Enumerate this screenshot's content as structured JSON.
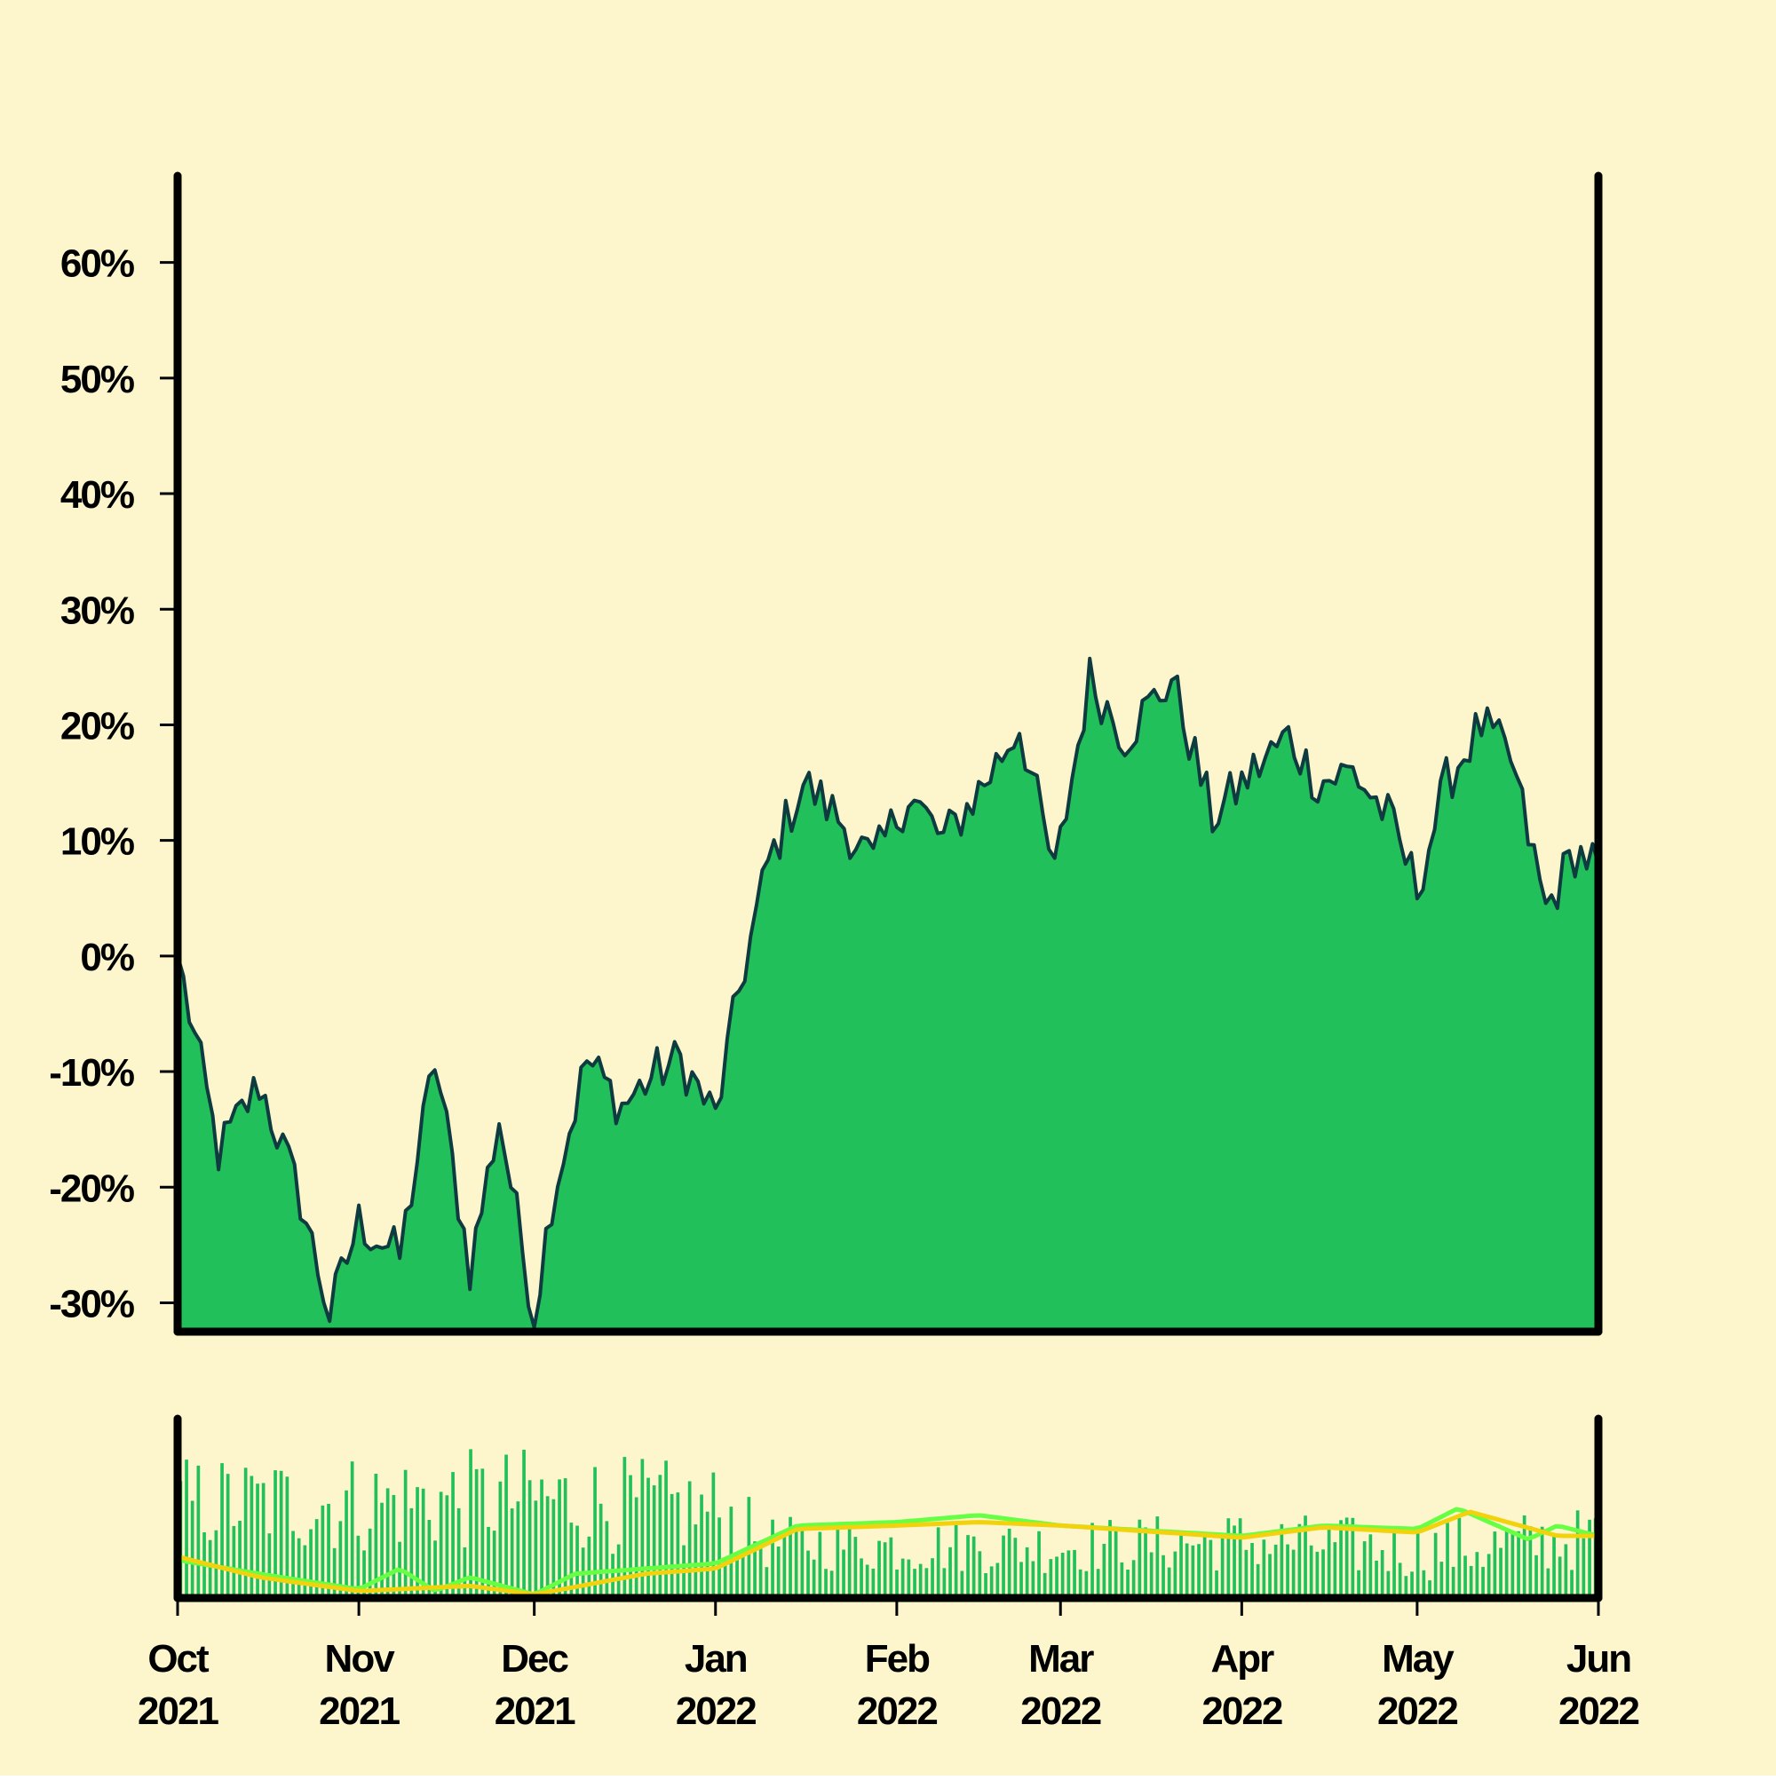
{
  "colors": {
    "background": "#fdf6cc",
    "area_fill": "#22c05a",
    "line": "#0d3b3f",
    "axis": "#000000",
    "volume_bars": "#22c05a",
    "ma_short": "#66ff44",
    "ma_long": "#f2d20c"
  },
  "chart_data": [
    {
      "type": "area",
      "x_dates": [
        "2021-10-01",
        "2021-10-08",
        "2021-10-15",
        "2021-10-22",
        "2021-10-27",
        "2021-11-01",
        "2021-11-08",
        "2021-11-14",
        "2021-11-20",
        "2021-11-25",
        "2021-12-01",
        "2021-12-04",
        "2021-12-10",
        "2021-12-16",
        "2021-12-22",
        "2021-12-26",
        "2022-01-01",
        "2022-01-05",
        "2022-01-10",
        "2022-01-16",
        "2022-01-22",
        "2022-01-28",
        "2022-02-03",
        "2022-02-09",
        "2022-02-16",
        "2022-02-22",
        "2022-02-28",
        "2022-03-06",
        "2022-03-12",
        "2022-03-20",
        "2022-03-27",
        "2022-04-03",
        "2022-04-09",
        "2022-04-14",
        "2022-04-20",
        "2022-04-26",
        "2022-05-01",
        "2022-05-06",
        "2022-05-12",
        "2022-05-17",
        "2022-05-23",
        "2022-05-28",
        "2022-06-01"
      ],
      "y_values": [
        0.0,
        -17.0,
        -11.0,
        -21.0,
        -31.0,
        -23.0,
        -26.0,
        -9.0,
        -27.0,
        -14.0,
        -31.0,
        -21.0,
        -9.0,
        -13.0,
        -10.0,
        -9.0,
        -14.0,
        -3.0,
        8.0,
        15.0,
        12.0,
        8.0,
        14.0,
        10.0,
        15.0,
        20.0,
        7.0,
        24.0,
        19.0,
        24.0,
        12.0,
        16.0,
        19.0,
        15.0,
        16.0,
        12.0,
        6.0,
        15.0,
        20.0,
        17.0,
        4.0,
        9.0,
        8.0
      ],
      "yticks": [
        "60%",
        "50%",
        "40%",
        "30%",
        "20%",
        "10%",
        "0%",
        "-10%",
        "-20%",
        "-30%"
      ],
      "ytick_values": [
        60,
        50,
        40,
        30,
        20,
        10,
        0,
        -10,
        -20,
        -30
      ],
      "ylim": [
        -32.5,
        67.5
      ],
      "xlabel": "",
      "ylabel": "",
      "title": ""
    },
    {
      "type": "bar",
      "note_series": [
        "volume",
        "ma_short",
        "ma_long"
      ],
      "xticks": [
        {
          "month": "Oct",
          "year": "2021"
        },
        {
          "month": "Nov",
          "year": "2021"
        },
        {
          "month": "Dec",
          "year": "2021"
        },
        {
          "month": "Jan",
          "year": "2022"
        },
        {
          "month": "Feb",
          "year": "2022"
        },
        {
          "month": "Mar",
          "year": "2022"
        },
        {
          "month": "Apr",
          "year": "2022"
        },
        {
          "month": "May",
          "year": "2022"
        },
        {
          "month": "Jun",
          "year": "2022"
        }
      ],
      "xtick_dates": [
        "2021-10-01",
        "2021-11-01",
        "2021-12-01",
        "2022-01-01",
        "2022-02-01",
        "2022-03-01",
        "2022-04-01",
        "2022-05-01",
        "2022-06-01"
      ],
      "volume_profile": {
        "dates": [
          "2021-10-01",
          "2021-11-01",
          "2021-12-01",
          "2022-01-01",
          "2022-01-10",
          "2022-02-01",
          "2022-03-01",
          "2022-04-01",
          "2022-05-01",
          "2022-05-15",
          "2022-06-01"
        ],
        "mean": [
          0.55,
          0.55,
          0.58,
          0.5,
          0.32,
          0.3,
          0.3,
          0.33,
          0.28,
          0.3,
          0.35
        ],
        "spread": [
          0.28,
          0.3,
          0.3,
          0.28,
          0.16,
          0.16,
          0.16,
          0.18,
          0.18,
          0.2,
          0.18
        ]
      },
      "ma_long_values": {
        "dates": [
          "2021-10-01",
          "2021-10-15",
          "2021-11-01",
          "2021-11-20",
          "2021-12-01",
          "2021-12-20",
          "2022-01-01",
          "2022-01-15",
          "2022-02-01",
          "2022-02-15",
          "2022-03-01",
          "2022-04-01",
          "2022-04-15",
          "2022-05-01",
          "2022-05-10",
          "2022-05-25",
          "2022-06-01"
        ],
        "values": [
          0.22,
          0.1,
          0.02,
          0.05,
          0.0,
          0.12,
          0.15,
          0.38,
          0.4,
          0.42,
          0.4,
          0.33,
          0.39,
          0.36,
          0.48,
          0.34,
          0.34
        ]
      },
      "ma_short_values": {
        "dates": [
          "2021-10-01",
          "2021-10-15",
          "2021-11-01",
          "2021-11-08",
          "2021-11-14",
          "2021-11-20",
          "2021-12-01",
          "2021-12-08",
          "2021-12-20",
          "2022-01-01",
          "2022-01-15",
          "2022-02-01",
          "2022-02-15",
          "2022-03-01",
          "2022-04-01",
          "2022-04-15",
          "2022-05-01",
          "2022-05-08",
          "2022-05-20",
          "2022-05-25",
          "2022-06-01"
        ],
        "values": [
          0.2,
          0.12,
          0.03,
          0.15,
          0.02,
          0.1,
          0.0,
          0.12,
          0.15,
          0.18,
          0.4,
          0.42,
          0.46,
          0.4,
          0.34,
          0.4,
          0.38,
          0.5,
          0.32,
          0.4,
          0.34
        ]
      },
      "ylim": [
        0,
        1
      ]
    }
  ]
}
